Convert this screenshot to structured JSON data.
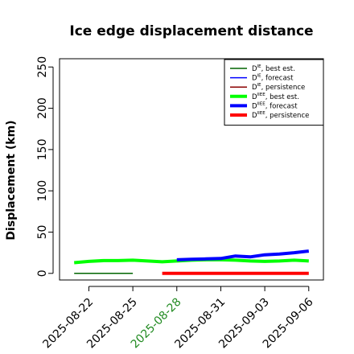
{
  "colors": {
    "best_thin": "#006400",
    "forecast_thin": "#0000ff",
    "persistence_thin": "#8b0000",
    "best_thick": "#00ff00",
    "forecast_thick": "#0000ff",
    "persistence_thick": "#ff0000",
    "highlight_tick": "#228b22"
  },
  "chart_data": {
    "type": "line",
    "title": "Ice edge displacement distance",
    "xlabel": "",
    "ylabel": "Displacement (km)",
    "ylim": [
      -8,
      260
    ],
    "yticks": [
      0,
      50,
      100,
      150,
      200,
      250
    ],
    "xlim": [
      "2025-08-20",
      "2025-09-07"
    ],
    "xticks": [
      "2025-08-22",
      "2025-08-25",
      "2025-08-28",
      "2025-08-31",
      "2025-09-03",
      "2025-09-06"
    ],
    "highlight_xtick": "2025-08-28",
    "grid": false,
    "legend_position": "top-right",
    "legend": [
      {
        "base": "D",
        "sup": "IE",
        "suffix": ", best est.",
        "color_key": "best_thin",
        "width": 1.5
      },
      {
        "base": "D",
        "sup": "IE",
        "suffix": ", forecast",
        "color_key": "forecast_thin",
        "width": 1.5
      },
      {
        "base": "D",
        "sup": "IE",
        "suffix": ", persistence",
        "color_key": "persistence_thin",
        "width": 1.5
      },
      {
        "base": "D",
        "sup": "IIEE",
        "suffix": ", best est.",
        "color_key": "best_thick",
        "width": 4
      },
      {
        "base": "D",
        "sup": "IIEE",
        "suffix": ", forecast",
        "color_key": "forecast_thick",
        "width": 4
      },
      {
        "base": "D",
        "sup": "IIEE",
        "suffix": ", persistence",
        "color_key": "persistence_thick",
        "width": 4
      }
    ],
    "series": [
      {
        "key": "ie_best",
        "color_key": "best_thin",
        "width": 1.5,
        "points": [
          [
            "2025-08-21",
            0
          ],
          [
            "2025-08-22",
            0
          ],
          [
            "2025-08-23",
            0
          ],
          [
            "2025-08-24",
            0
          ],
          [
            "2025-08-25",
            0
          ]
        ]
      },
      {
        "key": "iiee_best",
        "color_key": "best_thick",
        "width": 4,
        "points": [
          [
            "2025-08-21",
            13
          ],
          [
            "2025-08-22",
            14.5
          ],
          [
            "2025-08-23",
            15.5
          ],
          [
            "2025-08-24",
            15.5
          ],
          [
            "2025-08-25",
            16
          ],
          [
            "2025-08-27",
            14
          ],
          [
            "2025-08-28",
            15
          ],
          [
            "2025-08-29",
            16
          ],
          [
            "2025-08-30",
            16.5
          ],
          [
            "2025-08-31",
            16.5
          ],
          [
            "2025-09-01",
            16
          ],
          [
            "2025-09-02",
            15
          ],
          [
            "2025-09-03",
            14.5
          ],
          [
            "2025-09-04",
            15
          ],
          [
            "2025-09-05",
            16
          ],
          [
            "2025-09-06",
            15
          ]
        ]
      },
      {
        "key": "iiee_forecast",
        "color_key": "forecast_thick",
        "width": 4,
        "points": [
          [
            "2025-08-28",
            16.5
          ],
          [
            "2025-08-29",
            17
          ],
          [
            "2025-08-30",
            17.5
          ],
          [
            "2025-08-31",
            18
          ],
          [
            "2025-09-01",
            21
          ],
          [
            "2025-09-02",
            20
          ],
          [
            "2025-09-03",
            22.5
          ],
          [
            "2025-09-04",
            23.5
          ],
          [
            "2025-09-05",
            25
          ],
          [
            "2025-09-06",
            27
          ]
        ]
      },
      {
        "key": "iiee_persistence",
        "color_key": "persistence_thick",
        "width": 4,
        "points": [
          [
            "2025-08-27",
            0
          ],
          [
            "2025-08-28",
            0
          ],
          [
            "2025-08-29",
            0
          ],
          [
            "2025-08-30",
            0
          ],
          [
            "2025-08-31",
            0
          ],
          [
            "2025-09-01",
            0
          ],
          [
            "2025-09-02",
            0
          ],
          [
            "2025-09-03",
            0
          ],
          [
            "2025-09-04",
            0
          ],
          [
            "2025-09-05",
            0
          ],
          [
            "2025-09-06",
            0
          ]
        ]
      }
    ]
  }
}
